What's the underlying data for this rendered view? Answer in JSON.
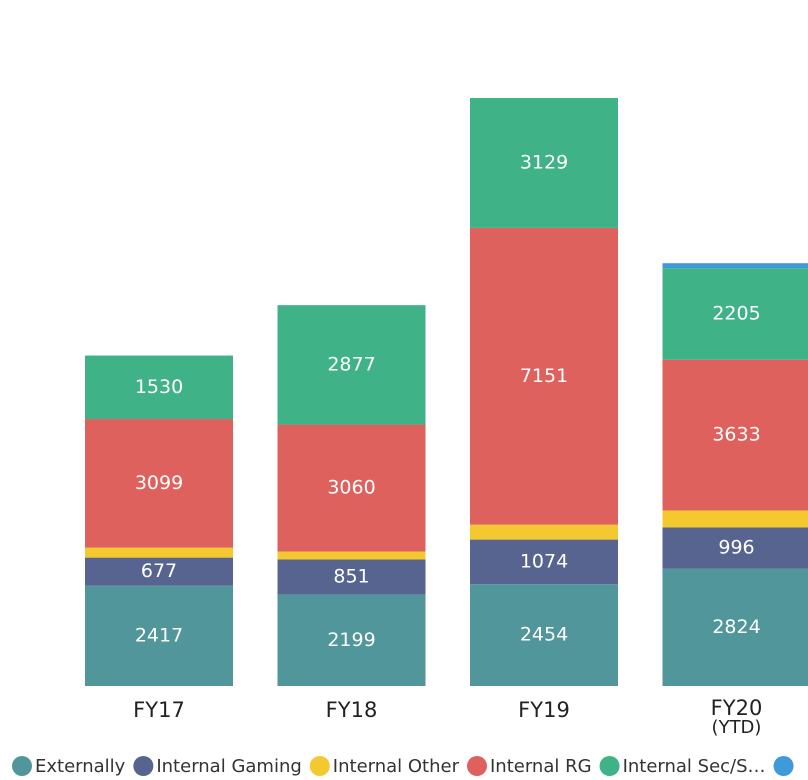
{
  "chart_data": {
    "type": "stacked_bar",
    "categories": [
      "FY17",
      "FY18",
      "FY19",
      "FY20\n(YTD)"
    ],
    "series": [
      {
        "name": "Externally",
        "color": "#50969a",
        "values": [
          2417,
          2199,
          2454,
          2824
        ]
      },
      {
        "name": "Internal Gaming",
        "color": "#56648f",
        "values": [
          677,
          851,
          1074,
          996
        ]
      },
      {
        "name": "Internal Other",
        "color": "#f3c92f",
        "values": [
          240,
          190,
          360,
          410
        ]
      },
      {
        "name": "Internal RG",
        "color": "#de615d",
        "values": [
          3099,
          3060,
          7151,
          3633
        ]
      },
      {
        "name": "Internal Sec/S…",
        "color": "#3fb287",
        "values": [
          1530,
          2877,
          3129,
          2205
        ]
      },
      {
        "name": null,
        "color": "#3e9ad8",
        "values": [
          0,
          0,
          0,
          120
        ]
      }
    ]
  }
}
